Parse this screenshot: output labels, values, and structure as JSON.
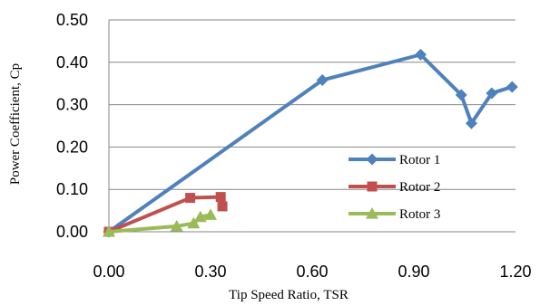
{
  "chart_data": {
    "type": "line",
    "xlabel": "Tip Speed Ratio, TSR",
    "ylabel": "Power Coefficient, Cp",
    "xlim": [
      0,
      1.2
    ],
    "ylim": [
      0,
      0.5
    ],
    "xticks": [
      "0.00",
      "0.30",
      "0.60",
      "0.90",
      "1.20"
    ],
    "yticks": [
      "0.00",
      "0.10",
      "0.20",
      "0.30",
      "0.40",
      "0.50"
    ],
    "grid": "horizontal",
    "legend_position": "right",
    "series": [
      {
        "name": "Rotor 1",
        "color": "#4F81BD",
        "marker": "diamond",
        "points": [
          [
            0.0,
            0.0
          ],
          [
            0.63,
            0.358
          ],
          [
            0.92,
            0.418
          ],
          [
            1.04,
            0.323
          ],
          [
            1.07,
            0.256
          ],
          [
            1.13,
            0.327
          ],
          [
            1.19,
            0.342
          ]
        ]
      },
      {
        "name": "Rotor 2",
        "color": "#C0504D",
        "marker": "square",
        "points": [
          [
            0.0,
            0.0
          ],
          [
            0.24,
            0.08
          ],
          [
            0.33,
            0.082
          ],
          [
            0.335,
            0.06
          ]
        ]
      },
      {
        "name": "Rotor 3",
        "color": "#9BBB59",
        "marker": "triangle",
        "points": [
          [
            0.0,
            0.0
          ],
          [
            0.2,
            0.013
          ],
          [
            0.25,
            0.02
          ],
          [
            0.27,
            0.035
          ],
          [
            0.3,
            0.04
          ]
        ]
      }
    ]
  }
}
